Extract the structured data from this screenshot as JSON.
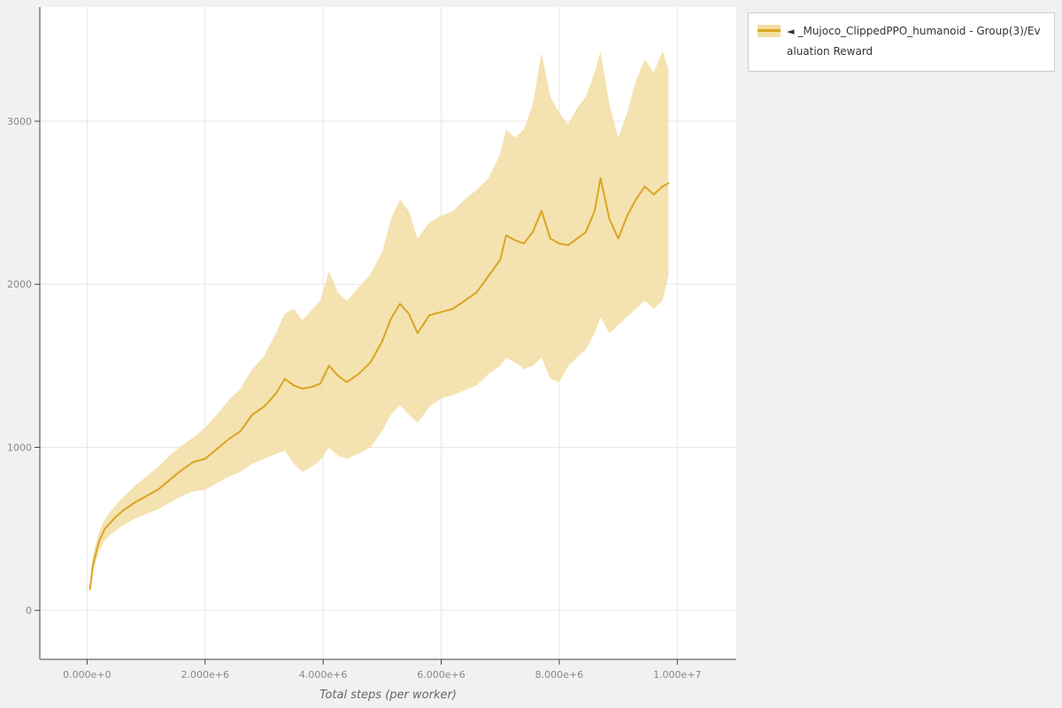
{
  "page": {
    "background_color": "#eff1f2",
    "plot_background_color": "#ffffff",
    "grid_color": "#e5e5e5",
    "axis_line_color": "#444444",
    "tick_label_color": "#888888",
    "axis_title_color": "#666666"
  },
  "legend": {
    "collapse_icon": "◄",
    "series_label": "_Mujoco_ClippedPPO_humanoid - Group(3)/Evaluation Reward"
  },
  "chart_data": {
    "type": "line",
    "title": "",
    "xlabel": "Total steps (per worker)",
    "ylabel": "",
    "xlim": [
      -800000,
      11000000
    ],
    "ylim": [
      -300,
      3700
    ],
    "grid": true,
    "legend_position": "top-right",
    "x_ticks": [
      {
        "v": 0,
        "label": "0.000e+0"
      },
      {
        "v": 2000000,
        "label": "2.000e+6"
      },
      {
        "v": 4000000,
        "label": "4.000e+6"
      },
      {
        "v": 6000000,
        "label": "6.000e+6"
      },
      {
        "v": 8000000,
        "label": "8.000e+6"
      },
      {
        "v": 10000000,
        "label": "1.000e+7"
      }
    ],
    "y_ticks": [
      {
        "v": 0,
        "label": "0"
      },
      {
        "v": 1000,
        "label": "1000"
      },
      {
        "v": 2000,
        "label": "2000"
      },
      {
        "v": 3000,
        "label": "3000"
      }
    ],
    "series": [
      {
        "name": "_Mujoco_ClippedPPO_humanoid - Group(3)/Evaluation Reward",
        "color": "#d9a521",
        "band_color": "#f2dda2",
        "x": [
          50000,
          100000,
          200000,
          300000,
          450000,
          600000,
          800000,
          1000000,
          1200000,
          1400000,
          1600000,
          1800000,
          2000000,
          2200000,
          2400000,
          2600000,
          2800000,
          3000000,
          3200000,
          3350000,
          3500000,
          3650000,
          3800000,
          3950000,
          4100000,
          4250000,
          4400000,
          4600000,
          4800000,
          5000000,
          5150000,
          5300000,
          5450000,
          5600000,
          5800000,
          6000000,
          6200000,
          6400000,
          6600000,
          6800000,
          7000000,
          7100000,
          7250000,
          7400000,
          7550000,
          7700000,
          7850000,
          8000000,
          8150000,
          8300000,
          8450000,
          8600000,
          8700000,
          8850000,
          9000000,
          9150000,
          9300000,
          9450000,
          9600000,
          9750000,
          9850000
        ],
        "mean": [
          130,
          280,
          420,
          500,
          560,
          610,
          660,
          700,
          740,
          800,
          860,
          910,
          930,
          990,
          1050,
          1100,
          1200,
          1250,
          1330,
          1420,
          1380,
          1360,
          1370,
          1390,
          1500,
          1440,
          1400,
          1450,
          1520,
          1650,
          1790,
          1880,
          1820,
          1700,
          1810,
          1830,
          1850,
          1900,
          1950,
          2050,
          2150,
          2300,
          2270,
          2250,
          2320,
          2450,
          2280,
          2250,
          2240,
          2280,
          2320,
          2450,
          2650,
          2400,
          2280,
          2420,
          2520,
          2600,
          2550,
          2600,
          2620
        ],
        "lower": [
          110,
          230,
          360,
          430,
          480,
          520,
          560,
          590,
          620,
          660,
          700,
          730,
          740,
          780,
          820,
          850,
          900,
          930,
          960,
          980,
          900,
          850,
          880,
          920,
          1000,
          950,
          930,
          960,
          1000,
          1100,
          1200,
          1260,
          1200,
          1150,
          1250,
          1300,
          1320,
          1350,
          1380,
          1450,
          1500,
          1550,
          1520,
          1480,
          1500,
          1550,
          1420,
          1400,
          1500,
          1550,
          1600,
          1700,
          1800,
          1700,
          1750,
          1800,
          1850,
          1900,
          1850,
          1900,
          2050
        ],
        "upper": [
          160,
          340,
          480,
          560,
          630,
          690,
          760,
          820,
          880,
          950,
          1010,
          1060,
          1120,
          1200,
          1290,
          1360,
          1480,
          1560,
          1700,
          1820,
          1850,
          1780,
          1840,
          1900,
          2080,
          1950,
          1900,
          1980,
          2060,
          2200,
          2400,
          2520,
          2450,
          2280,
          2380,
          2420,
          2450,
          2520,
          2580,
          2650,
          2800,
          2950,
          2900,
          2950,
          3100,
          3420,
          3150,
          3050,
          2980,
          3080,
          3150,
          3300,
          3430,
          3100,
          2900,
          3050,
          3250,
          3380,
          3300,
          3430,
          3320
        ]
      }
    ]
  }
}
